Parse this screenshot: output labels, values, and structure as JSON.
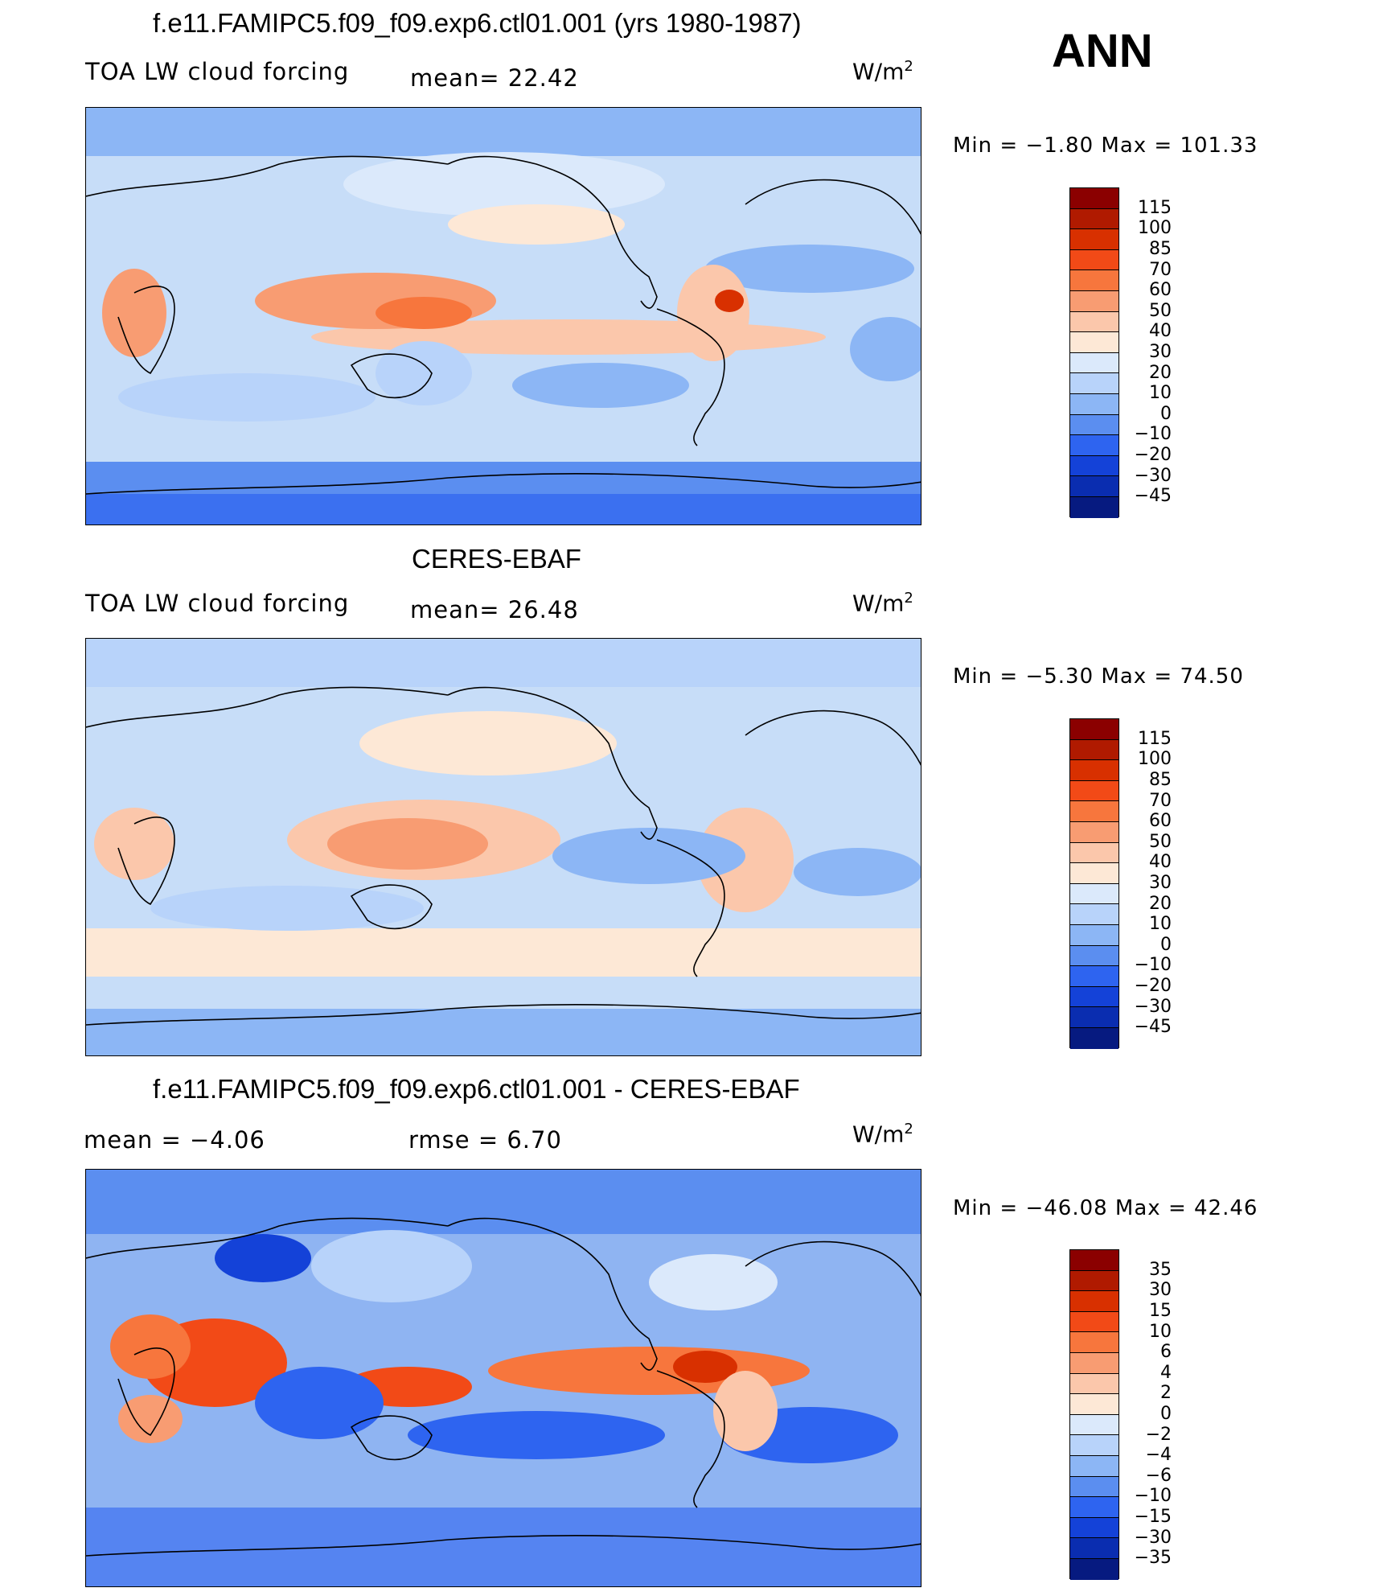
{
  "figure": {
    "season": "ANN",
    "units_main": "W/m",
    "units_exp": "2"
  },
  "panels": [
    {
      "title": "f.e11.FAMIPC5.f09_f09.exp6.ctl01.001 (yrs 1980-1987)",
      "left": "TOA LW cloud forcing",
      "middle": "mean=   22.42",
      "minmax": "Min  =    −1.80  Max  =  101.33",
      "colorbar": {
        "labels": [
          "115",
          "100",
          "85",
          "70",
          "60",
          "50",
          "40",
          "30",
          "20",
          "10",
          "0",
          "−10",
          "−20",
          "−30",
          "−45"
        ],
        "colors": [
          "#8b0000",
          "#b01a00",
          "#d83000",
          "#f24a17",
          "#f7763d",
          "#f89c72",
          "#fbc7ab",
          "#fde8d6",
          "#dbe9fb",
          "#b8d3fa",
          "#8cb6f5",
          "#5b8ef0",
          "#2e64f0",
          "#1442d8",
          "#0a2db0",
          "#061a80"
        ]
      }
    },
    {
      "title": "CERES-EBAF",
      "left": "TOA LW cloud forcing",
      "middle": "mean=   26.48",
      "minmax": "Min  =    −5.30  Max  =    74.50",
      "colorbar": {
        "labels": [
          "115",
          "100",
          "85",
          "70",
          "60",
          "50",
          "40",
          "30",
          "20",
          "10",
          "0",
          "−10",
          "−20",
          "−30",
          "−45"
        ],
        "colors": [
          "#8b0000",
          "#b01a00",
          "#d83000",
          "#f24a17",
          "#f7763d",
          "#f89c72",
          "#fbc7ab",
          "#fde8d6",
          "#dbe9fb",
          "#b8d3fa",
          "#8cb6f5",
          "#5b8ef0",
          "#2e64f0",
          "#1442d8",
          "#0a2db0",
          "#061a80"
        ]
      }
    },
    {
      "title": "f.e11.FAMIPC5.f09_f09.exp6.ctl01.001 - CERES-EBAF",
      "left": "mean  =    −4.06",
      "middle": "rmse  =     6.70",
      "minmax": "Min  = −46.08  Max  =    42.46",
      "colorbar": {
        "labels": [
          "35",
          "30",
          "15",
          "10",
          "6",
          "4",
          "2",
          "0",
          "−2",
          "−4",
          "−6",
          "−10",
          "−15",
          "−30",
          "−35"
        ],
        "colors": [
          "#8b0000",
          "#b01a00",
          "#d83000",
          "#f24a17",
          "#f7763d",
          "#f89c72",
          "#fbc7ab",
          "#fde8d6",
          "#dbe9fb",
          "#b8d3fa",
          "#8cb6f5",
          "#5b8ef0",
          "#2e64f0",
          "#1442d8",
          "#0a2db0",
          "#061a80"
        ]
      }
    }
  ],
  "colors": {
    "ocean_background_1": "#c7ddf8",
    "ocean_background_2": "#c7ddf8",
    "ocean_background_3": "#8fb4f2"
  }
}
